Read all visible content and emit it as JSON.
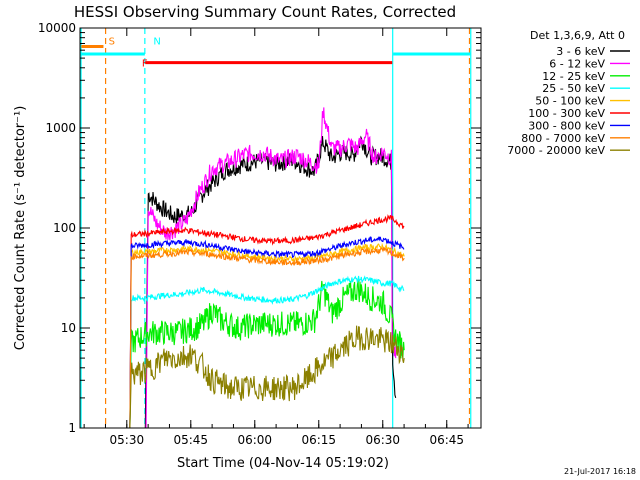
{
  "chart_data": {
    "type": "line",
    "title": "HESSI Observing Summary Count Rates, Corrected",
    "xlabel": "Start Time (04-Nov-14 05:19:02)",
    "ylabel": "Corrected Count Rate (s⁻¹ detector⁻¹)",
    "footer": "21-Jul-2017 16:18",
    "x_units": "minutes after 05:19:02 UT",
    "xlim": [
      0,
      94
    ],
    "ylim": [
      1,
      10000
    ],
    "y_scale": "log",
    "x_ticks": [
      {
        "value": 10.97,
        "label": "05:30"
      },
      {
        "value": 25.97,
        "label": "05:45"
      },
      {
        "value": 40.97,
        "label": "06:00"
      },
      {
        "value": 55.97,
        "label": "06:15"
      },
      {
        "value": 70.97,
        "label": "06:30"
      },
      {
        "value": 85.97,
        "label": "06:45"
      }
    ],
    "y_ticks": [
      {
        "value": 1,
        "label": "1"
      },
      {
        "value": 10,
        "label": "10"
      },
      {
        "value": 100,
        "label": "100"
      },
      {
        "value": 1000,
        "label": "1000"
      },
      {
        "value": 10000,
        "label": "10000"
      }
    ],
    "legend_header": "Det 1,3,6,9, Att 0",
    "legend_position": "right",
    "series": [
      {
        "name": "3 - 6 keV",
        "color": "#000000",
        "points": [
          [
            15.3,
            1
          ],
          [
            16,
            220
          ],
          [
            19,
            160
          ],
          [
            22,
            130
          ],
          [
            26,
            140
          ],
          [
            29,
            230
          ],
          [
            34,
            380
          ],
          [
            38,
            430
          ],
          [
            42,
            470
          ],
          [
            46,
            440
          ],
          [
            50,
            480
          ],
          [
            53,
            400
          ],
          [
            55,
            370
          ],
          [
            57,
            720
          ],
          [
            59,
            500
          ],
          [
            61,
            560
          ],
          [
            63,
            570
          ],
          [
            64,
            520
          ],
          [
            66,
            780
          ],
          [
            68,
            520
          ],
          [
            71,
            520
          ],
          [
            73,
            450
          ],
          [
            73.3,
            5
          ],
          [
            74,
            2
          ]
        ]
      },
      {
        "name": "6 - 12 keV",
        "color": "#ff00ff",
        "points": [
          [
            15.5,
            1
          ],
          [
            16,
            160
          ],
          [
            18,
            110
          ],
          [
            20,
            90
          ],
          [
            22,
            95
          ],
          [
            25,
            120
          ],
          [
            28,
            230
          ],
          [
            31,
            390
          ],
          [
            35,
            460
          ],
          [
            39,
            550
          ],
          [
            43,
            560
          ],
          [
            47,
            470
          ],
          [
            51,
            530
          ],
          [
            54,
            450
          ],
          [
            56,
            420
          ],
          [
            57,
            1500
          ],
          [
            59,
            630
          ],
          [
            61,
            620
          ],
          [
            63,
            700
          ],
          [
            65,
            620
          ],
          [
            67,
            850
          ],
          [
            69,
            500
          ],
          [
            71,
            580
          ],
          [
            73,
            500
          ],
          [
            73.2,
            7
          ],
          [
            74,
            5
          ]
        ]
      },
      {
        "name": "12 - 25 keV",
        "color": "#00ee00",
        "points": [
          [
            11.7,
            1
          ],
          [
            12,
            7
          ],
          [
            14,
            8
          ],
          [
            16,
            9
          ],
          [
            19,
            9
          ],
          [
            23,
            9
          ],
          [
            27,
            10
          ],
          [
            29,
            11
          ],
          [
            31,
            15
          ],
          [
            33,
            12
          ],
          [
            37,
            10
          ],
          [
            42,
            11
          ],
          [
            47,
            11
          ],
          [
            52,
            11
          ],
          [
            55,
            12
          ],
          [
            57,
            25
          ],
          [
            59,
            14
          ],
          [
            62,
            20
          ],
          [
            65,
            25
          ],
          [
            68,
            20
          ],
          [
            71,
            18
          ],
          [
            73,
            12
          ],
          [
            74,
            8
          ],
          [
            76,
            6
          ]
        ]
      },
      {
        "name": "25 - 50 keV",
        "color": "#00ffff",
        "points": [
          [
            11.7,
            1
          ],
          [
            12,
            20
          ],
          [
            15,
            20
          ],
          [
            19,
            21
          ],
          [
            24,
            22
          ],
          [
            29,
            24
          ],
          [
            34,
            22
          ],
          [
            39,
            20
          ],
          [
            44,
            19
          ],
          [
            49,
            19
          ],
          [
            53,
            21
          ],
          [
            56,
            24
          ],
          [
            59,
            28
          ],
          [
            62,
            30
          ],
          [
            65,
            31
          ],
          [
            68,
            30
          ],
          [
            71,
            28
          ],
          [
            73,
            28
          ],
          [
            75,
            25
          ],
          [
            76,
            24
          ]
        ]
      },
      {
        "name": "50 - 100 keV",
        "color": "#ffc000",
        "points": [
          [
            11.7,
            1
          ],
          [
            12,
            57
          ],
          [
            16,
            58
          ],
          [
            20,
            60
          ],
          [
            25,
            62
          ],
          [
            30,
            60
          ],
          [
            35,
            56
          ],
          [
            40,
            52
          ],
          [
            45,
            50
          ],
          [
            50,
            49
          ],
          [
            55,
            50
          ],
          [
            59,
            55
          ],
          [
            63,
            60
          ],
          [
            67,
            64
          ],
          [
            71,
            65
          ],
          [
            73,
            60
          ],
          [
            75,
            55
          ],
          [
            76,
            52
          ]
        ]
      },
      {
        "name": "100 - 300 keV",
        "color": "#ff0000",
        "points": [
          [
            11.7,
            1
          ],
          [
            12,
            85
          ],
          [
            16,
            88
          ],
          [
            20,
            92
          ],
          [
            25,
            95
          ],
          [
            30,
            88
          ],
          [
            35,
            82
          ],
          [
            40,
            76
          ],
          [
            45,
            74
          ],
          [
            50,
            75
          ],
          [
            55,
            80
          ],
          [
            60,
            92
          ],
          [
            65,
            105
          ],
          [
            70,
            120
          ],
          [
            73,
            125
          ],
          [
            75,
            110
          ],
          [
            76,
            102
          ]
        ]
      },
      {
        "name": "300 - 800 keV",
        "color": "#0000ff",
        "points": [
          [
            11.7,
            1
          ],
          [
            12,
            66
          ],
          [
            16,
            68
          ],
          [
            20,
            70
          ],
          [
            25,
            72
          ],
          [
            30,
            68
          ],
          [
            35,
            62
          ],
          [
            40,
            57
          ],
          [
            45,
            55
          ],
          [
            50,
            54
          ],
          [
            55,
            56
          ],
          [
            59,
            62
          ],
          [
            63,
            70
          ],
          [
            67,
            75
          ],
          [
            71,
            78
          ],
          [
            73,
            72
          ],
          [
            75,
            66
          ],
          [
            76,
            62
          ]
        ]
      },
      {
        "name": "800 - 7000 keV",
        "color": "#ff7f00",
        "points": [
          [
            11.7,
            1
          ],
          [
            12,
            52
          ],
          [
            16,
            53
          ],
          [
            20,
            55
          ],
          [
            25,
            57
          ],
          [
            30,
            55
          ],
          [
            35,
            51
          ],
          [
            40,
            48
          ],
          [
            45,
            46
          ],
          [
            50,
            45
          ],
          [
            55,
            47
          ],
          [
            59,
            50
          ],
          [
            63,
            55
          ],
          [
            67,
            58
          ],
          [
            71,
            60
          ],
          [
            73,
            56
          ],
          [
            75,
            52
          ],
          [
            76,
            50
          ]
        ]
      },
      {
        "name": "7000 - 20000 keV",
        "color": "#8b8000",
        "points": [
          [
            11.7,
            1
          ],
          [
            12,
            3.5
          ],
          [
            14,
            3.5
          ],
          [
            17,
            4
          ],
          [
            20,
            5
          ],
          [
            23,
            5
          ],
          [
            26,
            5.5
          ],
          [
            29,
            4
          ],
          [
            31,
            3
          ],
          [
            35,
            2.5
          ],
          [
            40,
            2.5
          ],
          [
            45,
            2.5
          ],
          [
            50,
            2.5
          ],
          [
            53,
            3
          ],
          [
            56,
            4
          ],
          [
            59,
            5
          ],
          [
            62,
            6.5
          ],
          [
            65,
            8
          ],
          [
            68,
            8
          ],
          [
            71,
            7.5
          ],
          [
            73,
            7
          ],
          [
            75,
            6
          ],
          [
            76,
            5
          ]
        ]
      }
    ],
    "annotations": [
      {
        "label": "S",
        "color": "#ff7f00",
        "x": 6.0,
        "y": 7500,
        "line_from": 0.3,
        "line_to": 5.5
      },
      {
        "label": "N",
        "color": "#00ffff",
        "x": 16.5,
        "y": 7500
      },
      {
        "label": "F",
        "color": "#ff0000",
        "x": 13.8,
        "y": 4500
      }
    ],
    "bars": [
      {
        "name": "night",
        "color": "#00ffff",
        "segments": [
          [
            0,
            15.2,
            5500
          ],
          [
            73.4,
            91.5,
            5500
          ]
        ]
      },
      {
        "name": "flare",
        "color": "#ff0000",
        "segments": [
          [
            15.3,
            73.2,
            4500
          ]
        ]
      }
    ],
    "vertical_lines": [
      {
        "x": 0.25,
        "color": "#00ffff",
        "style": "solid"
      },
      {
        "x": 6.0,
        "color": "#ff7f00",
        "style": "dashed"
      },
      {
        "x": 15.2,
        "color": "#00ffff",
        "style": "dashed"
      },
      {
        "x": 73.3,
        "color": "#00ffff",
        "style": "solid"
      },
      {
        "x": 91.3,
        "color": "#ff7f00",
        "style": "dashed"
      },
      {
        "x": 91.6,
        "color": "#00ffff",
        "style": "solid"
      }
    ]
  }
}
